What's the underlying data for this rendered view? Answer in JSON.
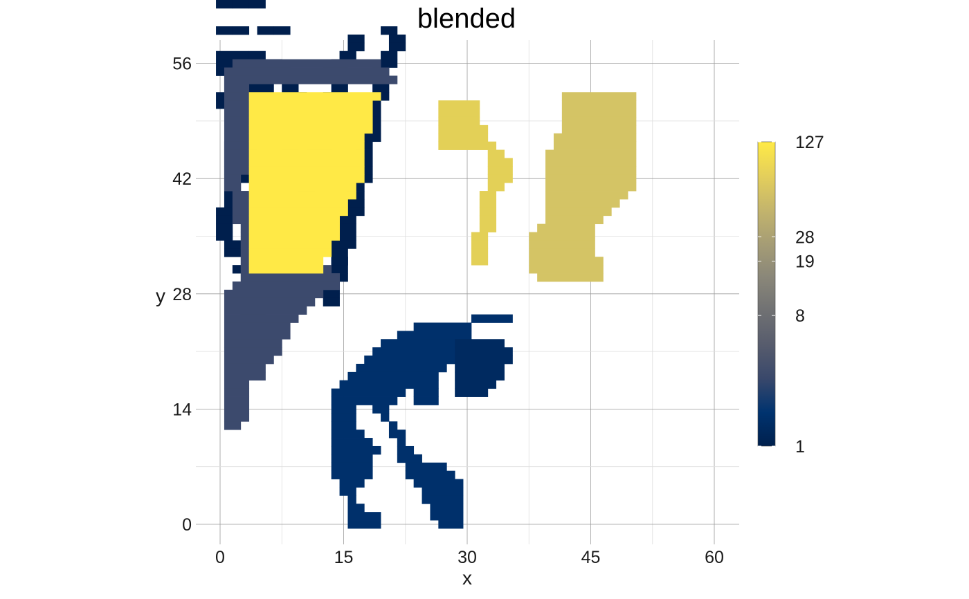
{
  "chart_data": {
    "type": "heatmap",
    "title": "blended",
    "xlabel": "x",
    "ylabel": "y",
    "xlim": [
      -1.5,
      62.5
    ],
    "ylim": [
      -2.5,
      58.5
    ],
    "x_ticks": [
      0,
      15,
      30,
      45,
      60
    ],
    "y_ticks": [
      0,
      14,
      28,
      42,
      56
    ],
    "grid": true,
    "colorbar": {
      "scale": "log",
      "min": 1,
      "max": 127,
      "ticks": [
        1,
        8,
        19,
        28,
        127
      ],
      "colormap": "cividis",
      "colors": [
        "#00204d",
        "#00336f",
        "#39486b",
        "#575c6d",
        "#707173",
        "#8a8779",
        "#a69d75",
        "#c4b56c",
        "#e4cf5b",
        "#ffea46"
      ],
      "position": "right"
    },
    "regions": [
      {
        "name": "region-1",
        "value": 1,
        "color": "#001f4d",
        "cells": "60:0-1,2-3|58-59:0-1,2-3,4-5|57:0-3,4-5|56:0-7|55:0-2,3-4,7-8|54:1-2,3-4,8-9|53:1-6,8-9|52:0-2,3-4,9-10|51:0-3,4-5,9-10|50:3-4,10-11|49:3-4,11-12|48:2-3,4-5,11-12,13-14|47:2-3,4-5,12-13|46:1-2,3-4,12-13|45:1-2,2-3,3-4,8-9|44:1-2,5-6|43:1-2,5-6|42:1-3,5-6|41:1-2|40:1-2|39:1-2,13-14|38:0-1|37:0-1|36:0-1|35:0-1|34:1-2,14-15|33:1-2|32:14-15|31:2-3"
      },
      {
        "name": "region-2",
        "value": 1,
        "color": "#001f4d",
        "cells": "60:5-6,7-8|59:16-17|58:16-17|57:15-16|56:14-15|55:2-3,13-14|54:14-15|53:14-15|52:13-14|51:12-13|50:12-13|49:12-13|48:12-13|47:12-13|46:12-13|45:11-12|44:11-12|43:10-11|42:10-11|41:10-11|40:10-11|39:9-10|38:9-10|37:9-10|36:8-9|35:7-8|34:7-8|33:7-8|32:7-8|31:6-7|30:6-7|29:5-6|28:4-5|27:4-5|26:4-5|25:3-4|24:3-4|23:2-3|22:2-3"
      },
      {
        "name": "region-3",
        "value": 1,
        "color": "#001f4d",
        "cells": "60:20-21|59:21-22|58:21-22|57:20-21|56:20-21|55:19-20|54:19-20|53:19-20|52:19-20|51:18-19|50:18-19|49:18-19|48:18-19|47:18-19|46:17-18|45:17-18|44:17-18|43:17-18|42:17-18|41:16-17|40:16-17|39:16-17|38:16-17|37:15-16|36:15-16|35:15-16|34:15-16|33:14-15|32:14-15|31:14-15|30:14-15|29:13-14|28:13-14|27:13-14"
      },
      {
        "name": "region-4",
        "value": 4,
        "color": "#00306b",
        "cells": "25:31-35|24:24-30|23:22-30|22:20-30|21:19-29|20:18-28|19:17-27|18:16-26|17:15-26|16:14-22,24-26|15:14-21,24-26|14:14-16,19-20|13:14-16,20|12:14-16,21|11:14-17,21-22|10:14-18,22|9:14-19,22-23|8:14-18,22-24|7:14-18,23-27|6:14-18,23-28|5:15-17,24-29|4:15-16,25-29|3:16,25-29|2:16-17,26-29|1:16-19,26-29|0:16-19,27-29"
      },
      {
        "name": "region-5",
        "value": 6,
        "color": "#3c4a6d",
        "cells": "56:2-19|55:1-20|54:1-21|53:1-3|52:1-3|51:1-3|50:1-3|49:1-3|48:1-3|47:1-3|46:1-3|45:1-3|44:1-3|43:1-3|42:1-2|41:1-2|40:2-3|39:2-3|38:2-3|37:2-3|36:3|35:3|34:3|33:3|32:3|31:3-13|30:3-14|29:2-14|28:1-12|27:1-11|26:1-10|25:1-9|24:1-8|23:1-8|22:1-7|21:1-7|20:1-6|19:1-5|18:1-5|17:1-3|16:1-3|15:1-3|14:1-3|13:1-3|12:1-2"
      },
      {
        "name": "region-6",
        "value": 127,
        "color": "#ffe946",
        "cells": "52:4-19|51:4-18|50:4-18|49:4-18|48:4-18|47:4-17|46:4-17|45:4-17|44:4-17|43:4-17|42:4-17|41:4-16|40:4-16|39:4-15|38:4-15|37:4-14|36:4-14|35:4-14|34:4-13|33:4-13|32:4-12|31:4-12"
      },
      {
        "name": "region-7",
        "value": 94,
        "color": "#e3d057",
        "cells": "51:27-31|50:27-31|49:27-31|48:27-32|47:27-32|46:27-33|45:33-34|44:33-35|43:33-35|42:33-35|41:33-34|40:32-33|39:32-33|38:32-33|37:32-33|36:32-33|35:31-32|34:31-32|33:31-32|32:31-32"
      },
      {
        "name": "region-8",
        "value": 65,
        "color": "#d4c465",
        "cells": "52:42-50|51:42-50|50:42-50|49:42-50|48:42-50|47:41-50|46:41-50|45:40-50|44:40-50|43:40-50|42:40-50|41:40-50|40:40-49|39:40-48|38:40-47|37:40-46|36:39-45|35:38-45|34:38-45|33:38-45|32:38-46|31:38-46|30:39-46"
      },
      {
        "name": "region-9",
        "value": 3,
        "color": "#002a60",
        "cells": "22:29-34|21:29-35|20:29-35|19:29-34|18:29-34|17:29-33|16:29-32"
      }
    ]
  }
}
